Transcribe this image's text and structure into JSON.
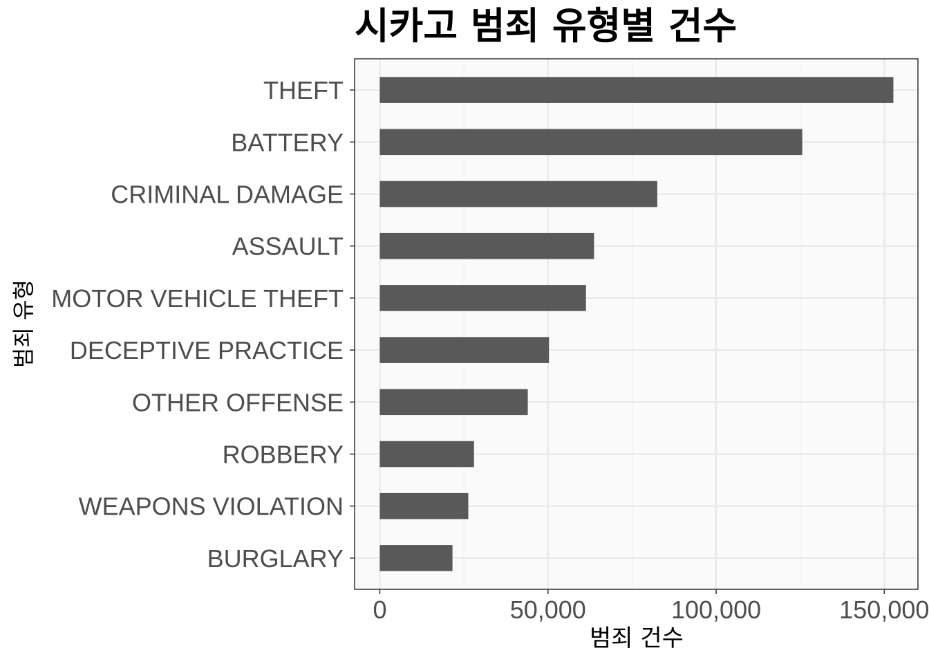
{
  "chart_data": {
    "type": "bar",
    "orientation": "horizontal",
    "title": "시카고 범죄 유형별 건수",
    "xlabel": "범죄 건수",
    "ylabel": "범죄 유형",
    "categories": [
      "THEFT",
      "BATTERY",
      "CRIMINAL DAMAGE",
      "ASSAULT",
      "MOTOR VEHICLE THEFT",
      "DECEPTIVE PRACTICE",
      "OTHER OFFENSE",
      "ROBBERY",
      "WEAPONS VIOLATION",
      "BURGLARY"
    ],
    "values": [
      152700,
      125600,
      82500,
      63700,
      61300,
      50300,
      44000,
      28000,
      26300,
      21600
    ],
    "xlim": [
      -7500,
      160000
    ],
    "xticks": [
      0,
      50000,
      100000,
      150000
    ],
    "xtick_labels": [
      "0",
      "50,000",
      "100,000",
      "150,000"
    ],
    "grid": true,
    "legend": "none",
    "colors": {
      "bar": "#595959",
      "panel_background": "#FAFAFA",
      "grid_major": "#E8E8E8",
      "grid_minor": "#F0F0F0",
      "panel_border": "#333333",
      "tick_label": "#4D4D4D"
    }
  }
}
